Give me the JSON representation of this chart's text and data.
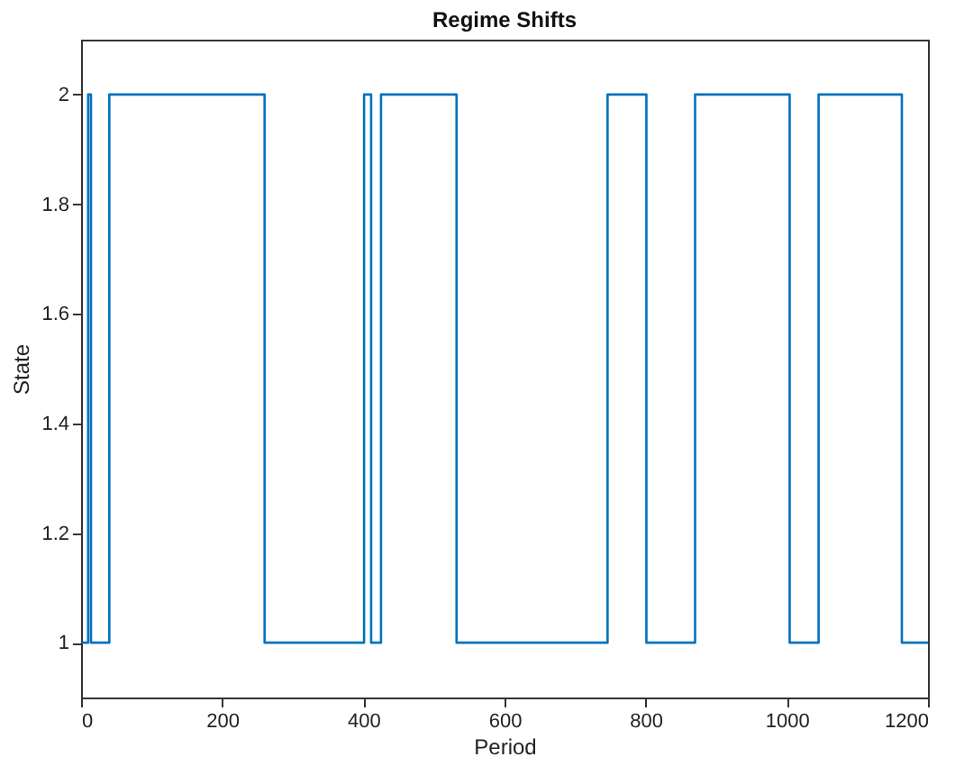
{
  "chart_data": {
    "type": "step",
    "title": "Regime Shifts",
    "xlabel": "Period",
    "ylabel": "State",
    "x": [
      1,
      10,
      14,
      40,
      260,
      401,
      411,
      425,
      532,
      746,
      801,
      870,
      1004,
      1045,
      1163,
      1200
    ],
    "series": [
      {
        "color": "#0072bd",
        "values": [
          1,
          2,
          1,
          2,
          1,
          2,
          1,
          2,
          1,
          2,
          1,
          2,
          1,
          2,
          1,
          1
        ]
      }
    ],
    "xlim": [
      0,
      1200
    ],
    "xticks": [
      0,
      200,
      400,
      600,
      800,
      1000,
      1200
    ],
    "ylim": [
      0.9,
      2.1
    ],
    "yticks": [
      1,
      1.2,
      1.4,
      1.6,
      1.8,
      2
    ],
    "grid": false
  }
}
